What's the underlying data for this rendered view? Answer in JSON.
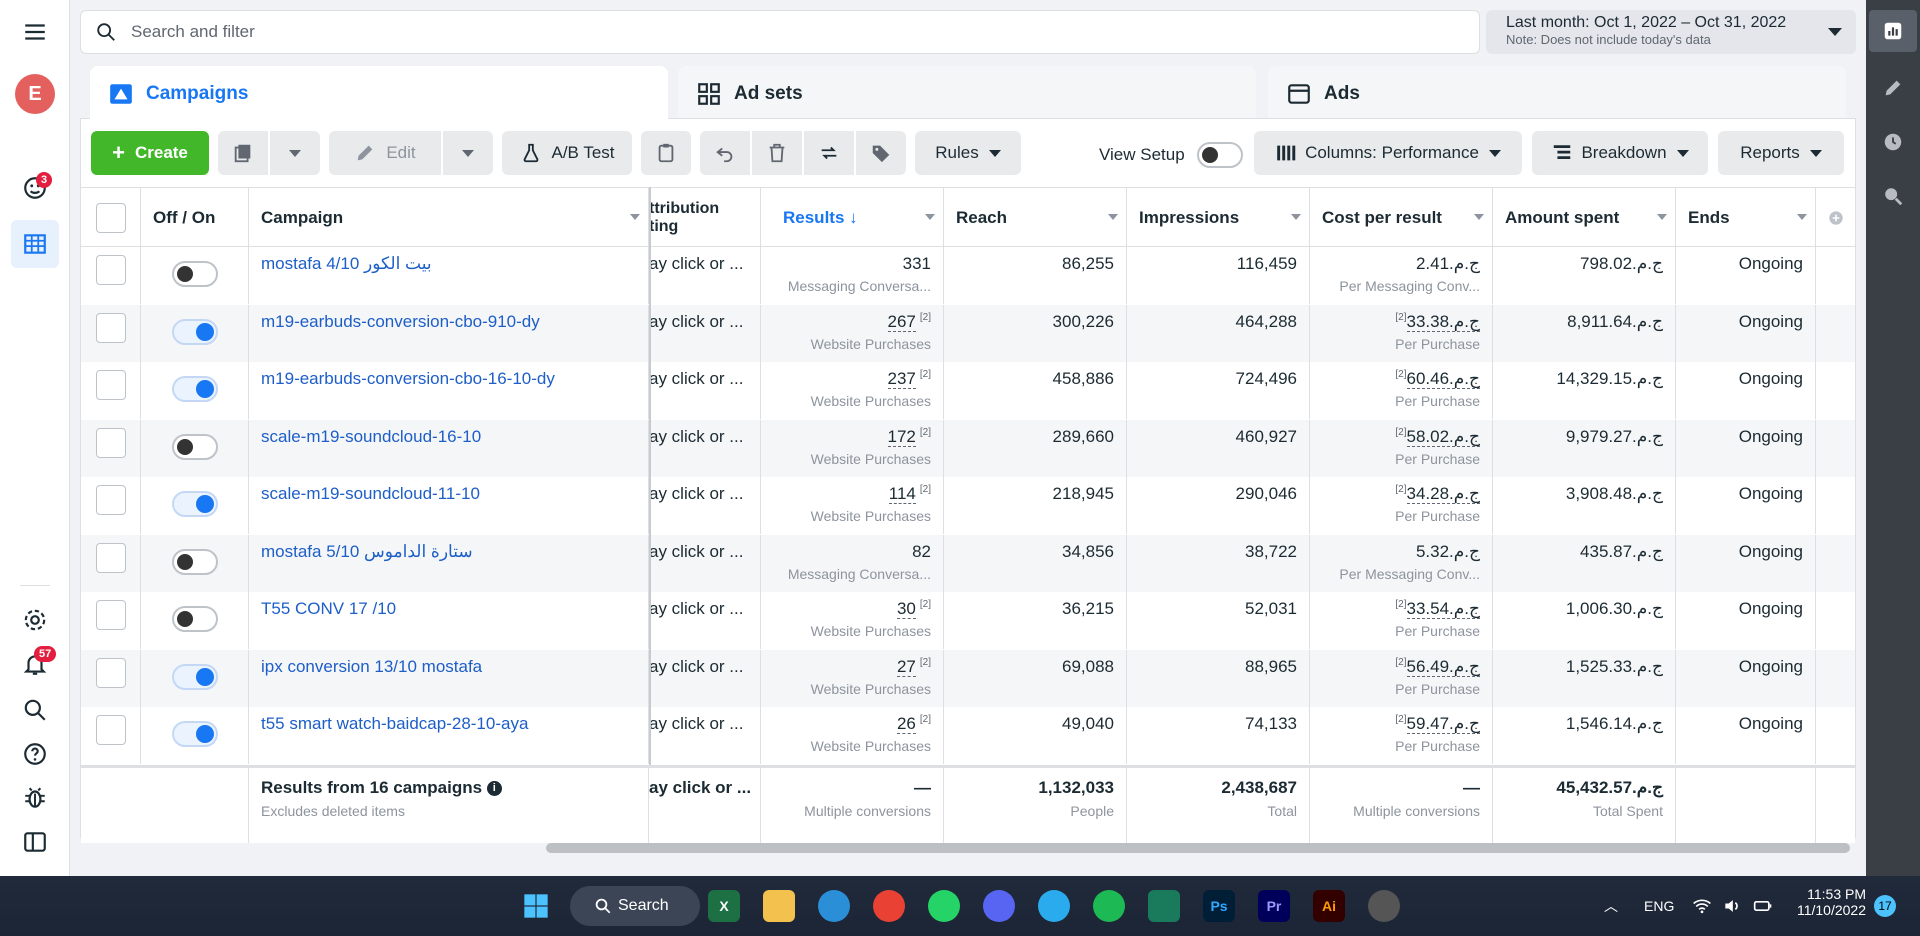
{
  "search": {
    "placeholder": "Search and filter"
  },
  "date_range": {
    "label": "Last month: Oct 1, 2022 – Oct 31, 2022",
    "note": "Note: Does not include today's data"
  },
  "tabs": [
    {
      "label": "Campaigns",
      "active": true
    },
    {
      "label": "Ad sets",
      "active": false
    },
    {
      "label": "Ads",
      "active": false
    }
  ],
  "left_nav": {
    "avatar_letter": "E",
    "notifications_badge": "3",
    "alerts_badge": "57"
  },
  "toolbar": {
    "create": "Create",
    "edit": "Edit",
    "ab_test": "A/B Test",
    "rules": "Rules",
    "view_setup": "View Setup",
    "columns": "Columns: Performance",
    "breakdown": "Breakdown",
    "reports": "Reports"
  },
  "table": {
    "headers": {
      "offon": "Off / On",
      "campaign": "Campaign",
      "attribution": "ttribution\nting",
      "results": "Results ↓",
      "reach": "Reach",
      "impressions": "Impressions",
      "cost_per_result": "Cost per result",
      "amount_spent": "Amount spent",
      "ends": "Ends"
    },
    "rows": [
      {
        "name": "mostafa 4/10 بيت الكور",
        "on": false,
        "attribution": "ay click or ...",
        "results": "331",
        "results_sub": "Messaging Conversa...",
        "reach": "86,255",
        "impressions": "116,459",
        "cpr": "ج.م.2.41",
        "cpr_sub": "Per Messaging Conv...",
        "spent": "ج.م.798.02",
        "ends": "Ongoing",
        "sup": false
      },
      {
        "name": "m19-earbuds-conversion-cbo-910-dy",
        "on": true,
        "attribution": "ay click or ...",
        "results": "267",
        "results_sub": "Website Purchases",
        "reach": "300,226",
        "impressions": "464,288",
        "cpr": "ج.م.33.38",
        "cpr_sub": "Per Purchase",
        "spent": "ج.م.8,911.64",
        "ends": "Ongoing",
        "sup": true
      },
      {
        "name": "m19-earbuds-conversion-cbo-16-10-dy",
        "on": true,
        "attribution": "ay click or ...",
        "results": "237",
        "results_sub": "Website Purchases",
        "reach": "458,886",
        "impressions": "724,496",
        "cpr": "ج.م.60.46",
        "cpr_sub": "Per Purchase",
        "spent": "ج.م.14,329.15",
        "ends": "Ongoing",
        "sup": true
      },
      {
        "name": "scale-m19-soundcloud-16-10",
        "on": false,
        "attribution": "ay click or ...",
        "results": "172",
        "results_sub": "Website Purchases",
        "reach": "289,660",
        "impressions": "460,927",
        "cpr": "ج.م.58.02",
        "cpr_sub": "Per Purchase",
        "spent": "ج.م.9,979.27",
        "ends": "Ongoing",
        "sup": true
      },
      {
        "name": "scale-m19-soundcloud-11-10",
        "on": true,
        "attribution": "ay click or ...",
        "results": "114",
        "results_sub": "Website Purchases",
        "reach": "218,945",
        "impressions": "290,046",
        "cpr": "ج.م.34.28",
        "cpr_sub": "Per Purchase",
        "spent": "ج.م.3,908.48",
        "ends": "Ongoing",
        "sup": true
      },
      {
        "name": "mostafa 5/10 ستارة الداموس",
        "on": false,
        "attribution": "ay click or ...",
        "results": "82",
        "results_sub": "Messaging Conversa...",
        "reach": "34,856",
        "impressions": "38,722",
        "cpr": "ج.م.5.32",
        "cpr_sub": "Per Messaging Conv...",
        "spent": "ج.م.435.87",
        "ends": "Ongoing",
        "sup": false
      },
      {
        "name": "T55 CONV 17 /10",
        "on": false,
        "attribution": "ay click or ...",
        "results": "30",
        "results_sub": "Website Purchases",
        "reach": "36,215",
        "impressions": "52,031",
        "cpr": "ج.م.33.54",
        "cpr_sub": "Per Purchase",
        "spent": "ج.م.1,006.30",
        "ends": "Ongoing",
        "sup": true
      },
      {
        "name": "ipx conversion 13/10 mostafa",
        "on": true,
        "attribution": "ay click or ...",
        "results": "27",
        "results_sub": "Website Purchases",
        "reach": "69,088",
        "impressions": "88,965",
        "cpr": "ج.م.56.49",
        "cpr_sub": "Per Purchase",
        "spent": "ج.م.1,525.33",
        "ends": "Ongoing",
        "sup": true
      },
      {
        "name": "t55 smart watch-baidcap-28-10-aya",
        "on": true,
        "attribution": "ay click or ...",
        "results": "26",
        "results_sub": "Website Purchases",
        "reach": "49,040",
        "impressions": "74,133",
        "cpr": "ج.م.59.47",
        "cpr_sub": "Per Purchase",
        "spent": "ج.م.1,546.14",
        "ends": "Ongoing",
        "sup": true
      }
    ],
    "sup_mark": "[2]",
    "totals": {
      "label": "Results from 16 campaigns",
      "sub": "Excludes deleted items",
      "attribution": "ay click or ...",
      "results": "—",
      "results_sub": "Multiple conversions",
      "reach": "1,132,033",
      "reach_sub": "People",
      "impressions": "2,438,687",
      "impressions_sub": "Total",
      "cpr": "—",
      "cpr_sub": "Multiple conversions",
      "spent": "ج.م.45,432.57",
      "spent_sub": "Total Spent"
    }
  },
  "taskbar": {
    "search": "Search",
    "lang": "ENG",
    "time": "11:53 PM",
    "date": "11/10/2022",
    "notif_count": "17"
  },
  "colors": {
    "accent": "#1877f2",
    "create_green": "#42b72a",
    "link": "#1d5ec8"
  }
}
